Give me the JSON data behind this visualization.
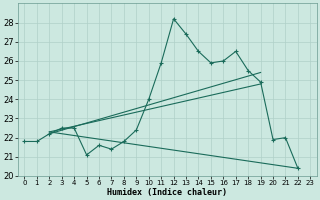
{
  "xlabel": "Humidex (Indice chaleur)",
  "bg_color": "#cce8e0",
  "grid_color": "#b0d0c8",
  "line_color": "#1a6b5a",
  "xlim": [
    -0.5,
    23.5
  ],
  "ylim": [
    20,
    29
  ],
  "yticks": [
    20,
    21,
    22,
    23,
    24,
    25,
    26,
    27,
    28
  ],
  "xticks": [
    0,
    1,
    2,
    3,
    4,
    5,
    6,
    7,
    8,
    9,
    10,
    11,
    12,
    13,
    14,
    15,
    16,
    17,
    18,
    19,
    20,
    21,
    22,
    23
  ],
  "main_line_x": [
    0,
    1,
    2,
    3,
    4,
    5,
    6,
    7,
    8,
    9,
    10,
    11,
    12,
    13,
    14,
    15,
    16,
    17,
    18,
    19,
    20,
    21,
    22
  ],
  "main_line_y": [
    21.8,
    21.8,
    22.2,
    22.5,
    22.5,
    21.1,
    21.6,
    21.4,
    21.8,
    22.4,
    24.0,
    25.9,
    28.2,
    27.4,
    26.5,
    25.9,
    26.0,
    26.5,
    25.5,
    24.9,
    21.9,
    22.0,
    20.4
  ],
  "trend_line1_x": [
    2,
    19
  ],
  "trend_line1_y": [
    22.2,
    25.4
  ],
  "trend_line2_x": [
    2,
    19
  ],
  "trend_line2_y": [
    22.3,
    24.8
  ],
  "trend_line3_x": [
    2,
    22
  ],
  "trend_line3_y": [
    22.3,
    20.4
  ]
}
